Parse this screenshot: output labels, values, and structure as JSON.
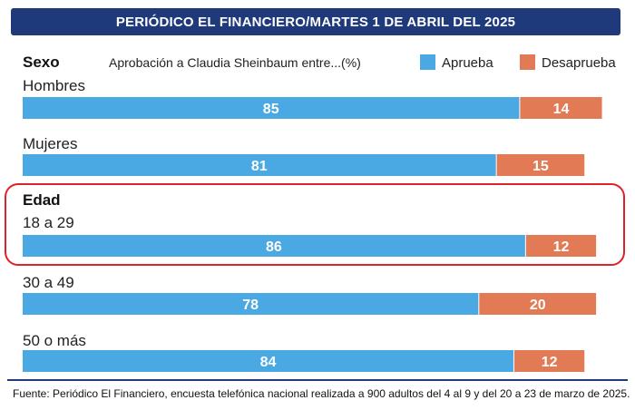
{
  "header": {
    "title": "PERIÓDICO EL FINANCIERO/MARTES 1 DE ABRIL DEL 2025"
  },
  "footer": {
    "source": "Fuente: Periódico El Financiero, encuesta telefónica nacional realizada a 900 adultos del 4 al 9 y del 20 a 23 de marzo de 2025."
  },
  "colors": {
    "aprueba": "#4aa8e2",
    "desaprueba": "#e27b55",
    "highlight": "#e0202a",
    "banner": "#1e3a7b"
  },
  "chart_data": {
    "type": "bar",
    "orientation": "horizontal",
    "stacked": true,
    "title": "Aprobación a Claudia Sheinbaum entre...(%)",
    "groups": [
      {
        "label": "Sexo",
        "categories": [
          "Hombres",
          "Mujeres"
        ]
      },
      {
        "label": "Edad",
        "categories": [
          "18 a 29",
          "30 a 49",
          "50 o más"
        ]
      }
    ],
    "categories": [
      "Hombres",
      "Mujeres",
      "18 a 29",
      "30 a 49",
      "50 o más"
    ],
    "series": [
      {
        "name": "Aprueba",
        "values": [
          85,
          81,
          86,
          78,
          84
        ]
      },
      {
        "name": "Desaprueba",
        "values": [
          14,
          15,
          12,
          20,
          12
        ]
      }
    ],
    "highlighted_category": "18 a 29",
    "legend": "top-right",
    "grid": false
  }
}
